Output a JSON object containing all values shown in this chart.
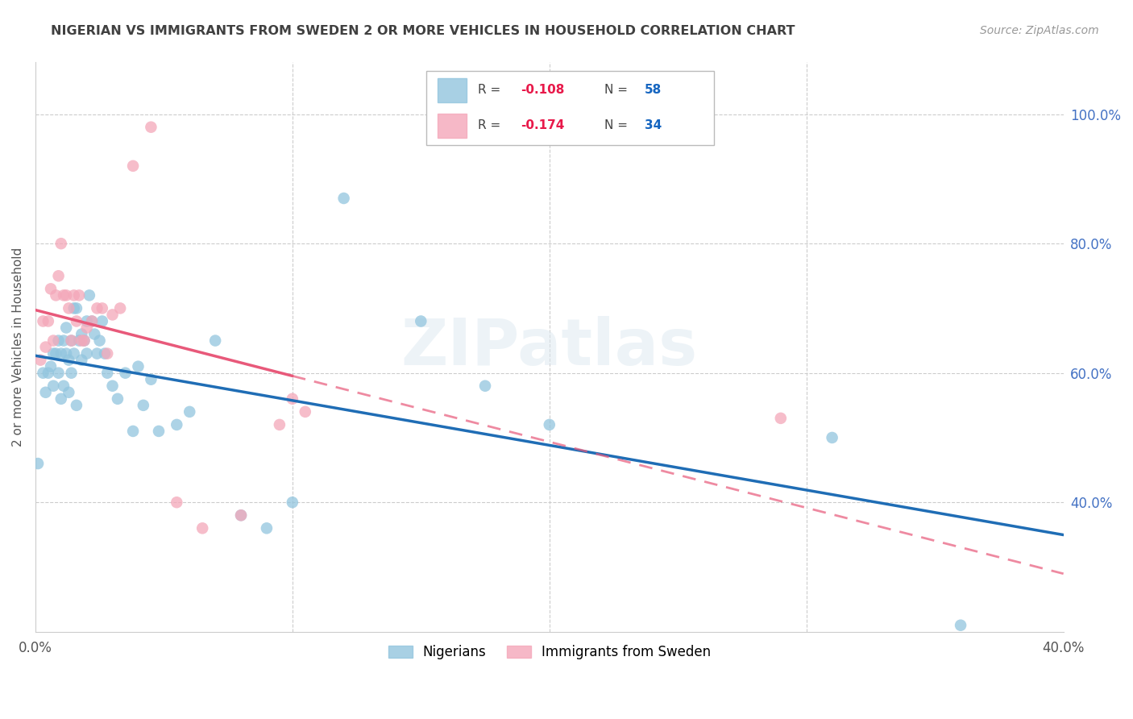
{
  "title": "NIGERIAN VS IMMIGRANTS FROM SWEDEN 2 OR MORE VEHICLES IN HOUSEHOLD CORRELATION CHART",
  "source": "Source: ZipAtlas.com",
  "ylabel": "2 or more Vehicles in Household",
  "xmin": 0.0,
  "xmax": 0.4,
  "ymin": 0.2,
  "ymax": 1.08,
  "yticks": [
    0.4,
    0.6,
    0.8,
    1.0
  ],
  "ytick_labels": [
    "40.0%",
    "60.0%",
    "80.0%",
    "100.0%"
  ],
  "xtick_labels": [
    "0.0%",
    "40.0%"
  ],
  "watermark": "ZIPatlas",
  "legend_r1": "-0.108",
  "legend_n1": "58",
  "legend_r2": "-0.174",
  "legend_n2": "34",
  "blue_color": "#92c5de",
  "pink_color": "#f4a7b9",
  "blue_line_color": "#1f6db5",
  "pink_line_color": "#e8597a",
  "title_color": "#404040",
  "axis_label_color": "#555555",
  "right_tick_color": "#4472C4",
  "grid_color": "#cccccc",
  "nigerians_x": [
    0.001,
    0.003,
    0.004,
    0.005,
    0.006,
    0.007,
    0.007,
    0.008,
    0.009,
    0.009,
    0.01,
    0.01,
    0.011,
    0.011,
    0.012,
    0.012,
    0.013,
    0.013,
    0.014,
    0.014,
    0.015,
    0.015,
    0.016,
    0.016,
    0.017,
    0.018,
    0.018,
    0.019,
    0.02,
    0.02,
    0.021,
    0.022,
    0.023,
    0.024,
    0.025,
    0.026,
    0.027,
    0.028,
    0.03,
    0.032,
    0.035,
    0.038,
    0.04,
    0.042,
    0.045,
    0.048,
    0.055,
    0.06,
    0.07,
    0.08,
    0.09,
    0.1,
    0.12,
    0.15,
    0.175,
    0.2,
    0.31,
    0.36
  ],
  "nigerians_y": [
    0.46,
    0.6,
    0.57,
    0.6,
    0.61,
    0.63,
    0.58,
    0.63,
    0.65,
    0.6,
    0.63,
    0.56,
    0.65,
    0.58,
    0.67,
    0.63,
    0.62,
    0.57,
    0.65,
    0.6,
    0.7,
    0.63,
    0.7,
    0.55,
    0.65,
    0.66,
    0.62,
    0.65,
    0.68,
    0.63,
    0.72,
    0.68,
    0.66,
    0.63,
    0.65,
    0.68,
    0.63,
    0.6,
    0.58,
    0.56,
    0.6,
    0.51,
    0.61,
    0.55,
    0.59,
    0.51,
    0.52,
    0.54,
    0.65,
    0.38,
    0.36,
    0.4,
    0.87,
    0.68,
    0.58,
    0.52,
    0.5,
    0.21
  ],
  "sweden_x": [
    0.002,
    0.003,
    0.004,
    0.005,
    0.006,
    0.007,
    0.008,
    0.009,
    0.01,
    0.011,
    0.012,
    0.013,
    0.014,
    0.015,
    0.016,
    0.017,
    0.018,
    0.019,
    0.02,
    0.022,
    0.024,
    0.026,
    0.028,
    0.03,
    0.033,
    0.038,
    0.045,
    0.055,
    0.065,
    0.08,
    0.095,
    0.1,
    0.105,
    0.29
  ],
  "sweden_y": [
    0.62,
    0.68,
    0.64,
    0.68,
    0.73,
    0.65,
    0.72,
    0.75,
    0.8,
    0.72,
    0.72,
    0.7,
    0.65,
    0.72,
    0.68,
    0.72,
    0.65,
    0.65,
    0.67,
    0.68,
    0.7,
    0.7,
    0.63,
    0.69,
    0.7,
    0.92,
    0.98,
    0.4,
    0.36,
    0.38,
    0.52,
    0.56,
    0.54,
    0.53
  ]
}
